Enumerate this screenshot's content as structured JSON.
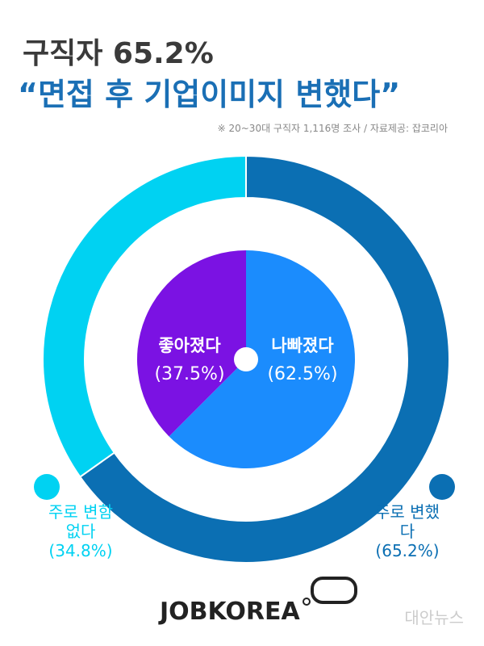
{
  "header": {
    "title": "구직자 65.2%",
    "subtitle": "“면접 후 기업이미지 변했다”",
    "note": "※ 20~30대 구직자 1,116명 조사  / 자료제공: 잡코리아"
  },
  "chart_data": [
    {
      "type": "donut",
      "categories": [
        "주로 변했다",
        "주로 변함없다"
      ],
      "values": [
        65.2,
        34.8
      ],
      "value_labels": [
        "(65.2%)",
        "(34.8%)"
      ],
      "colors": [
        "#0b6fb3",
        "#00d2f2"
      ]
    },
    {
      "type": "pie",
      "categories": [
        "나빠졌다",
        "좋아졌다"
      ],
      "values": [
        62.5,
        37.5
      ],
      "value_labels": [
        "(62.5%)",
        "(37.5%)"
      ],
      "colors": [
        "#1b8cfd",
        "#7b12e3"
      ]
    }
  ],
  "footer": {
    "logo": "JOBKOREA",
    "watermark": "대안뉴스"
  }
}
